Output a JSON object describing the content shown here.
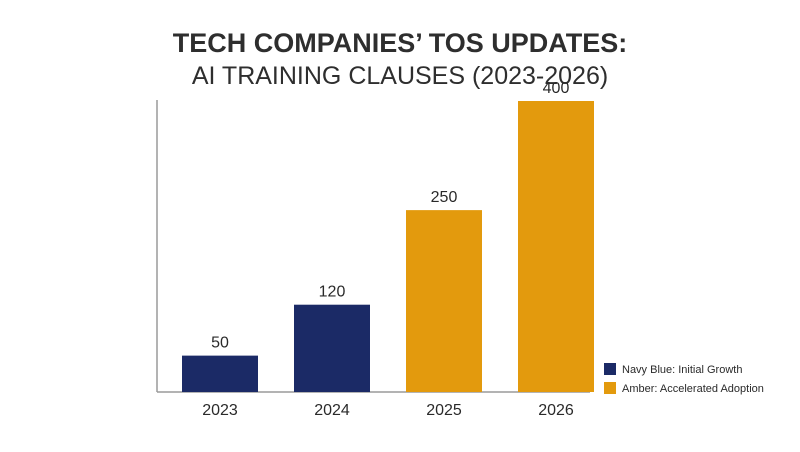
{
  "chart_data": {
    "type": "bar",
    "title": "TECH COMPANIES’ TOS UPDATES:",
    "subtitle": "AI TRAINING CLAUSES (2023-2026)",
    "categories": [
      "2023",
      "2024",
      "2025",
      "2026"
    ],
    "values": [
      50,
      120,
      250,
      400
    ],
    "data_labels": [
      "50",
      "120",
      "250",
      "400"
    ],
    "bar_groups": [
      "initial",
      "initial",
      "accelerated",
      "accelerated"
    ],
    "legend": [
      {
        "key": "initial",
        "label": "Navy Blue: Initial Growth",
        "color": "#1b2a66"
      },
      {
        "key": "accelerated",
        "label": "Amber: Accelerated Adoption",
        "color": "#e39a0d"
      }
    ],
    "legend_position": "bottom-right",
    "ylim": [
      0,
      400
    ],
    "grid": false,
    "xlabel": "",
    "ylabel": ""
  },
  "colors": {
    "axis": "#9a9a9a",
    "title": "#2e2e2e",
    "label": "#2a2a2a"
  }
}
